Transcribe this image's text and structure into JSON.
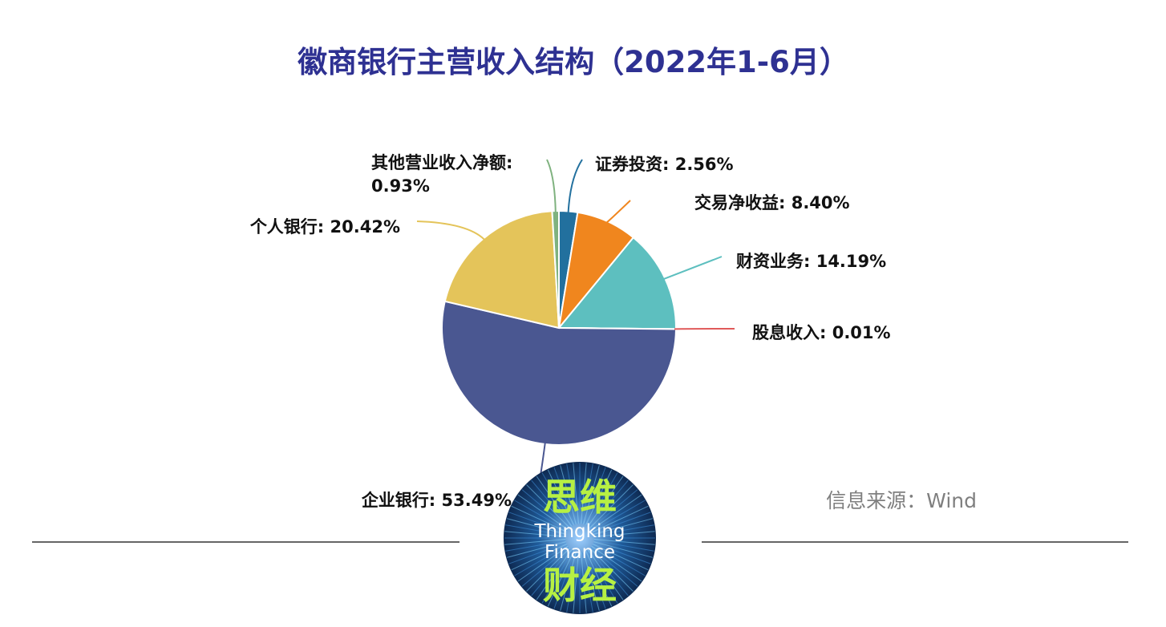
{
  "chart_data": {
    "type": "pie",
    "title": "徽商银行主营收入结构（2022年1-6月）",
    "slices": [
      {
        "name": "证券投资",
        "value": 2.56,
        "label": "证券投资: 2.56%",
        "color": "#22709e"
      },
      {
        "name": "交易净收益",
        "value": 8.4,
        "label": "交易净收益: 8.40%",
        "color": "#f0861e"
      },
      {
        "name": "财资业务",
        "value": 14.19,
        "label": "财资业务: 14.19%",
        "color": "#5dbfbf"
      },
      {
        "name": "股息收入",
        "value": 0.01,
        "label": "股息收入: 0.01%",
        "color": "#e05a5a"
      },
      {
        "name": "企业银行",
        "value": 53.49,
        "label": "企业银行: 53.49%",
        "color": "#4a5791"
      },
      {
        "name": "个人银行",
        "value": 20.42,
        "label": "个人银行: 20.42%",
        "color": "#e4c45a"
      },
      {
        "name": "其他营业收入净额",
        "value": 0.93,
        "label_lines": [
          "其他营业收入净额:",
          "0.93%"
        ],
        "color": "#7fb27f"
      }
    ]
  },
  "source": "信息来源：Wind",
  "logo": {
    "cn_top": "思维",
    "en_line1": "Thingking",
    "en_line2": "Finance",
    "cn_bottom": "财经"
  }
}
